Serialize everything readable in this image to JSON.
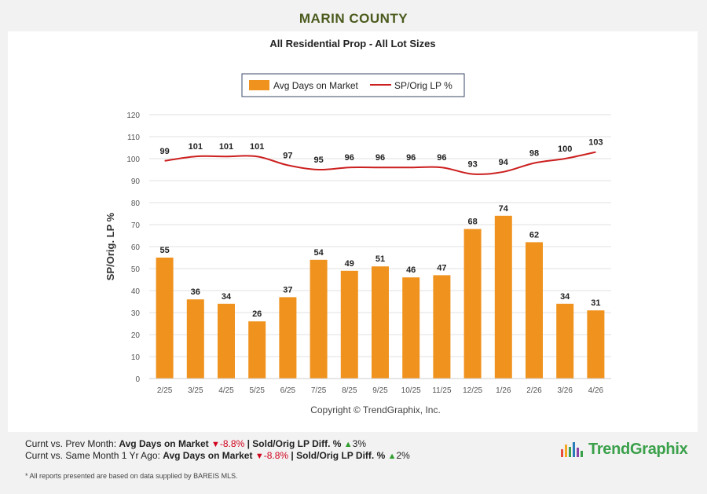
{
  "header": {
    "title": "MARIN COUNTY"
  },
  "chart_data": {
    "type": "bar",
    "title": "All Residential Prop - All Lot Sizes",
    "ylabel": "SP/Orig. LP %",
    "ylim": [
      0,
      120
    ],
    "yticks": [
      0,
      10,
      20,
      30,
      40,
      50,
      60,
      70,
      80,
      90,
      100,
      110,
      120
    ],
    "grid": true,
    "legend_position": "top-center",
    "categories": [
      "2/25",
      "3/25",
      "4/25",
      "5/25",
      "6/25",
      "7/25",
      "8/25",
      "9/25",
      "10/25",
      "11/25",
      "12/25",
      "1/26",
      "2/26",
      "3/26",
      "4/26"
    ],
    "series": [
      {
        "name": "Avg Days on Market",
        "type": "bar",
        "color": "#f0921e",
        "values": [
          55,
          36,
          34,
          26,
          37,
          54,
          49,
          51,
          46,
          47,
          68,
          74,
          62,
          34,
          31
        ]
      },
      {
        "name": "SP/Orig LP %",
        "type": "line",
        "color": "#cc1f1f",
        "values": [
          99,
          101,
          101,
          101,
          97,
          95,
          96,
          96,
          96,
          96,
          93,
          94,
          98,
          100,
          103
        ]
      }
    ],
    "copyright": "Copyright © TrendGraphix, Inc."
  },
  "footer": {
    "row1": {
      "label": "Curnt vs. Prev Month:",
      "dom_label": "Avg Days on Market",
      "dom_change": "-8.8%",
      "sep": "|",
      "sp_label": "Sold/Orig LP Diff. %",
      "sp_change": "3%"
    },
    "row2": {
      "label": "Curnt vs. Same Month 1 Yr Ago:",
      "dom_label": "Avg Days on Market",
      "dom_change": "-8.8%",
      "sep": "|",
      "sp_label": "Sold/Orig LP Diff. %",
      "sp_change": "2%"
    },
    "disclaimer": "* All reports presented are based on data supplied by BAREIS MLS.",
    "brand": "TrendGraphix"
  },
  "colors": {
    "title": "#4a5a1c",
    "bar": "#f0921e",
    "line": "#cc1f1f",
    "negative": "#d0021b",
    "positive": "#2e9e2e"
  }
}
